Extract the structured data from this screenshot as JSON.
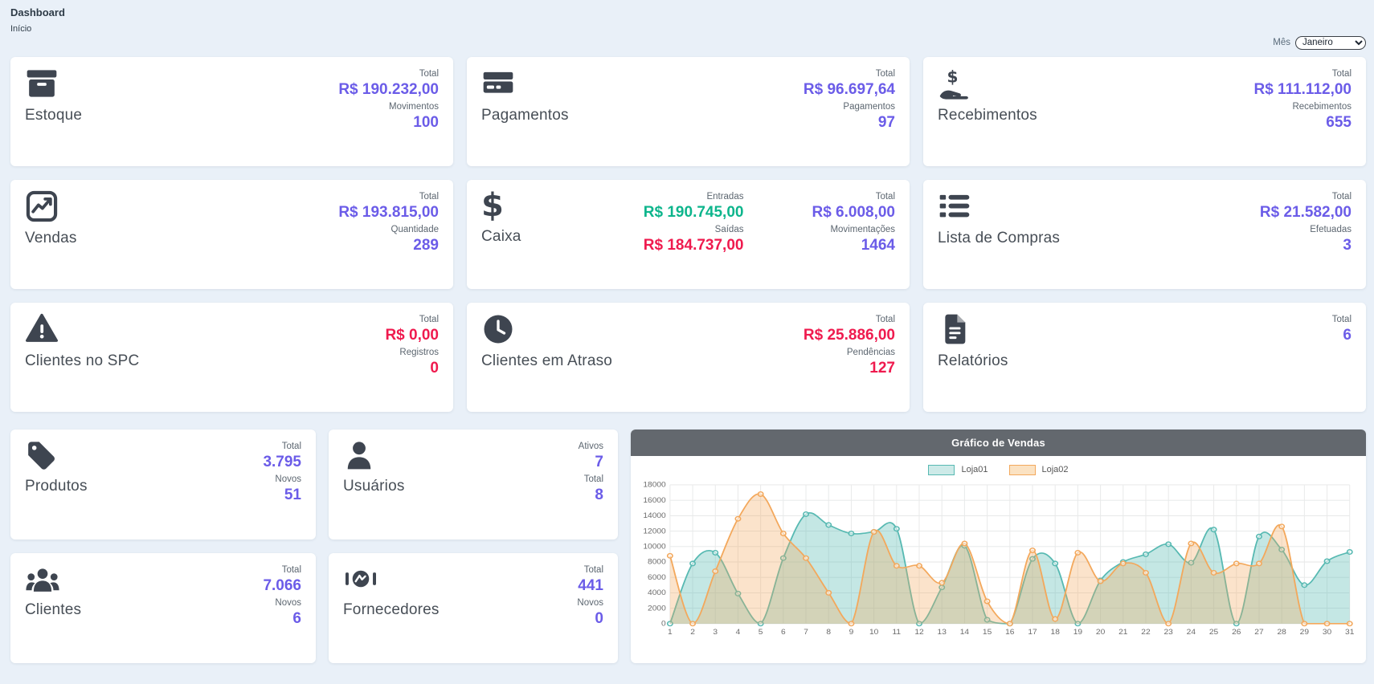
{
  "page": {
    "title": "Dashboard",
    "subtitle": "Início"
  },
  "filter": {
    "label": "Mês",
    "selected": "Janeiro"
  },
  "colors": {
    "background": "#e9f0f8",
    "card": "#ffffff",
    "icon": "#3e4550",
    "value_purple": "#6b5ce8",
    "value_green": "#0db58c",
    "value_red": "#ef1a4e",
    "chart_header": "#63686e",
    "loja01": "#57b9b2",
    "loja02": "#f3a85c"
  },
  "cards": [
    {
      "title": "Estoque",
      "icon": "box-archive-icon",
      "stats": [
        {
          "label": "Total",
          "value": "R$ 190.232,00"
        },
        {
          "label": "Movimentos",
          "value": "100"
        }
      ]
    },
    {
      "title": "Pagamentos",
      "icon": "credit-card-icon",
      "stats": [
        {
          "label": "Total",
          "value": "R$ 96.697,64"
        },
        {
          "label": "Pagamentos",
          "value": "97"
        }
      ]
    },
    {
      "title": "Recebimentos",
      "icon": "hand-holding-dollar-icon",
      "glyph": "$",
      "stats": [
        {
          "label": "Total",
          "value": "R$ 111.112,00"
        },
        {
          "label": "Recebimentos",
          "value": "655"
        }
      ]
    },
    {
      "title": "Vendas",
      "icon": "chart-line-icon",
      "stats": [
        {
          "label": "Total",
          "value": "R$ 193.815,00"
        },
        {
          "label": "Quantidade",
          "value": "289"
        }
      ]
    },
    {
      "title": "Caixa",
      "icon": "dollar-sign-icon",
      "glyph": "$",
      "stats": [
        {
          "label": "Entradas",
          "value": "R$ 190.745,00"
        },
        {
          "label": "Saídas",
          "value": "R$ 184.737,00"
        },
        {
          "label": "Total",
          "value": "R$ 6.008,00"
        },
        {
          "label": "Movimentações",
          "value": "1464"
        }
      ]
    },
    {
      "title": "Lista de Compras",
      "icon": "list-icon",
      "stats": [
        {
          "label": "Total",
          "value": "R$ 21.582,00"
        },
        {
          "label": "Efetuadas",
          "value": "3"
        }
      ]
    },
    {
      "title": "Clientes no SPC",
      "icon": "triangle-exclamation-icon",
      "stats": [
        {
          "label": "Total",
          "value": "R$ 0,00"
        },
        {
          "label": "Registros",
          "value": "0"
        }
      ]
    },
    {
      "title": "Clientes em Atraso",
      "icon": "clock-icon",
      "stats": [
        {
          "label": "Total",
          "value": "R$ 25.886,00"
        },
        {
          "label": "Pendências",
          "value": "127"
        }
      ]
    },
    {
      "title": "Relatórios",
      "icon": "file-lines-icon",
      "stats": [
        {
          "label": "Total",
          "value": "6"
        }
      ]
    },
    {
      "title": "Produtos",
      "icon": "tag-icon",
      "stats": [
        {
          "label": "Total",
          "value": "3.795"
        },
        {
          "label": "Novos",
          "value": "51"
        }
      ]
    },
    {
      "title": "Usuários",
      "icon": "user-icon",
      "stats": [
        {
          "label": "Ativos",
          "value": "7"
        },
        {
          "label": "Total",
          "value": "8"
        }
      ]
    },
    {
      "title": "Clientes",
      "icon": "users-icon",
      "stats": [
        {
          "label": "Total",
          "value": "7.066"
        },
        {
          "label": "Novos",
          "value": "6"
        }
      ]
    },
    {
      "title": "Fornecedores",
      "icon": "handshake-icon",
      "stats": [
        {
          "label": "Total",
          "value": "441"
        },
        {
          "label": "Novos",
          "value": "0"
        }
      ]
    }
  ],
  "chart_data": {
    "type": "area",
    "title": "Gráfico de Vendas",
    "xlabel": "",
    "ylabel": "",
    "x": [
      1,
      2,
      3,
      4,
      5,
      6,
      7,
      8,
      9,
      10,
      11,
      12,
      13,
      14,
      15,
      16,
      17,
      18,
      19,
      20,
      21,
      22,
      23,
      24,
      25,
      26,
      27,
      28,
      29,
      30,
      31
    ],
    "series": [
      {
        "name": "Loja01",
        "color": "#57b9b2",
        "fill": "rgba(87,185,178,0.35)",
        "legend_fill": "#cdeae8",
        "values": [
          0,
          7800,
          9200,
          3900,
          0,
          8500,
          14200,
          12800,
          11700,
          11900,
          12300,
          0,
          4700,
          10100,
          500,
          0,
          8400,
          7800,
          0,
          5600,
          8000,
          9000,
          10300,
          7900,
          12200,
          0,
          11300,
          9600,
          5000,
          8100,
          9300
        ]
      },
      {
        "name": "Loja02",
        "color": "#f3a85c",
        "fill": "rgba(243,168,92,0.32)",
        "legend_fill": "#fbe2c2",
        "values": [
          8800,
          0,
          6800,
          13600,
          16800,
          11700,
          8500,
          4000,
          0,
          11900,
          7500,
          7500,
          5300,
          10400,
          2900,
          0,
          9500,
          600,
          9200,
          5500,
          7800,
          6600,
          0,
          10400,
          6600,
          7800,
          7800,
          12600,
          0,
          0,
          0
        ]
      }
    ],
    "ylim": [
      0,
      18000
    ],
    "y_tick_step": 2000,
    "grid": true,
    "legend_position": "top",
    "smooth": true
  }
}
